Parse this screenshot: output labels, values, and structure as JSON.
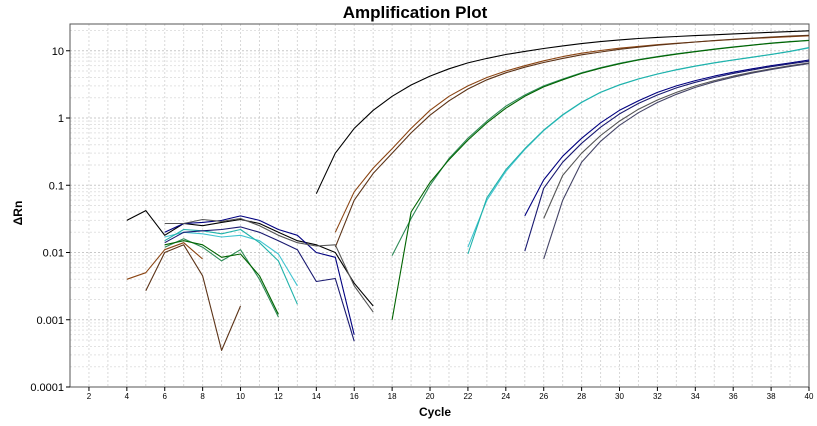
{
  "chart_data": {
    "type": "line",
    "title": "Amplification Plot",
    "xlabel": "Cycle",
    "ylabel": "ΔRn",
    "xlim": [
      1,
      40
    ],
    "ylim": [
      0.0001,
      25
    ],
    "yscale": "log",
    "grid": true,
    "x_ticks": [
      2,
      4,
      6,
      8,
      10,
      12,
      14,
      16,
      18,
      20,
      22,
      24,
      26,
      28,
      30,
      32,
      34,
      36,
      38,
      40
    ],
    "y_ticks": [
      {
        "value": 0.0001,
        "label": "0.0001"
      },
      {
        "value": 0.001,
        "label": "0.001"
      },
      {
        "value": 0.01,
        "label": "0.01"
      },
      {
        "value": 0.1,
        "label": "0.1"
      },
      {
        "value": 1,
        "label": "1"
      },
      {
        "value": 10,
        "label": "10"
      }
    ],
    "series": [
      {
        "color": "#000000",
        "x": [
          14,
          15,
          16,
          17,
          18,
          19,
          20,
          21,
          22,
          23,
          24,
          25,
          26,
          27,
          28,
          29,
          30,
          31,
          32,
          33,
          34,
          35,
          36,
          37,
          38,
          39,
          40
        ],
        "y": [
          0.075,
          0.3,
          0.7,
          1.3,
          2.1,
          3.1,
          4.2,
          5.4,
          6.6,
          7.7,
          8.8,
          9.8,
          10.8,
          11.8,
          12.8,
          13.7,
          14.5,
          15.2,
          15.8,
          16.3,
          16.8,
          17.3,
          17.8,
          18.3,
          18.8,
          19.3,
          19.8
        ]
      },
      {
        "color": "#000000",
        "x": [
          4,
          5,
          6,
          7,
          8,
          9,
          10,
          11,
          12,
          13,
          14,
          15,
          16,
          17
        ],
        "y": [
          0.03,
          0.042,
          0.018,
          0.027,
          0.025,
          0.028,
          0.031,
          0.027,
          0.02,
          0.015,
          0.013,
          0.01,
          0.0035,
          0.0016
        ]
      },
      {
        "color": "#8b4513",
        "x": [
          15,
          16,
          17,
          18,
          19,
          20,
          21,
          22,
          23,
          24,
          25,
          26,
          27,
          28,
          29,
          30,
          31,
          32,
          33,
          34,
          35,
          36,
          37,
          38,
          39,
          40
        ],
        "y": [
          0.02,
          0.08,
          0.18,
          0.35,
          0.7,
          1.3,
          2.1,
          3.0,
          4.0,
          5.0,
          6.0,
          7.1,
          8.2,
          9.2,
          10.1,
          10.9,
          11.6,
          12.3,
          12.9,
          13.5,
          14.1,
          14.7,
          15.2,
          15.7,
          16.2,
          16.7
        ]
      },
      {
        "color": "#5c3317",
        "x": [
          15,
          16,
          17,
          18,
          19,
          20,
          21,
          22,
          23,
          24,
          25,
          26,
          27,
          28,
          29,
          30,
          31,
          32,
          33,
          34,
          35,
          36,
          37,
          38,
          39,
          40
        ],
        "y": [
          0.012,
          0.06,
          0.15,
          0.3,
          0.6,
          1.1,
          1.8,
          2.7,
          3.7,
          4.7,
          5.7,
          6.7,
          7.7,
          8.7,
          9.6,
          10.5,
          11.3,
          12.1,
          12.8,
          13.5,
          14.2,
          14.8,
          15.4,
          16.0,
          16.5,
          17.0
        ]
      },
      {
        "color": "#8b4513",
        "x": [
          4,
          5,
          6,
          7,
          8
        ],
        "y": [
          0.004,
          0.005,
          0.011,
          0.014,
          0.008
        ]
      },
      {
        "color": "#5c3317",
        "x": [
          5,
          6,
          7,
          8,
          9,
          10
        ],
        "y": [
          0.0027,
          0.01,
          0.013,
          0.0045,
          0.00035,
          0.0016
        ]
      },
      {
        "color": "#2e8b57",
        "x": [
          18,
          19,
          20,
          21,
          22,
          23,
          24,
          25,
          26,
          27,
          28,
          29,
          30,
          31,
          32,
          33,
          34,
          35,
          36,
          37,
          38,
          39,
          40
        ],
        "y": [
          0.009,
          0.032,
          0.1,
          0.25,
          0.5,
          0.9,
          1.5,
          2.2,
          3.0,
          3.8,
          4.7,
          5.6,
          6.5,
          7.4,
          8.2,
          9.0,
          9.8,
          10.6,
          11.4,
          12.2,
          13.0,
          13.7,
          14.3
        ]
      },
      {
        "color": "#006400",
        "x": [
          18,
          19,
          20,
          21,
          22,
          23,
          24,
          25,
          26,
          27,
          28,
          29,
          30,
          31,
          32,
          33,
          34,
          35,
          36,
          37,
          38,
          39,
          40
        ],
        "y": [
          0.001,
          0.04,
          0.11,
          0.24,
          0.47,
          0.85,
          1.4,
          2.1,
          2.9,
          3.7,
          4.6,
          5.5,
          6.4,
          7.3,
          8.1,
          8.9,
          9.7,
          10.5,
          11.3,
          12.1,
          12.9,
          13.6,
          14.2
        ]
      },
      {
        "color": "#2e8b57",
        "x": [
          6,
          7,
          8,
          9,
          10,
          11,
          12
        ],
        "y": [
          0.012,
          0.016,
          0.012,
          0.0075,
          0.011,
          0.004,
          0.0011
        ]
      },
      {
        "color": "#006400",
        "x": [
          6,
          7,
          8,
          9,
          10,
          11,
          12
        ],
        "y": [
          0.013,
          0.015,
          0.013,
          0.0085,
          0.0095,
          0.0045,
          0.0012
        ]
      },
      {
        "color": "#40c4d0",
        "x": [
          22,
          23,
          24,
          25,
          26,
          27,
          28,
          29,
          30,
          31,
          32,
          33,
          34,
          35,
          36,
          37,
          38,
          39,
          40
        ],
        "y": [
          0.012,
          0.06,
          0.16,
          0.34,
          0.65,
          1.1,
          1.7,
          2.4,
          3.1,
          3.8,
          4.5,
          5.2,
          5.9,
          6.6,
          7.3,
          8.0,
          8.8,
          9.8,
          11.0
        ]
      },
      {
        "color": "#20b2aa",
        "x": [
          22,
          23,
          24,
          25,
          26,
          27,
          28,
          29,
          30,
          31,
          32,
          33,
          34,
          35,
          36,
          37,
          38,
          39,
          40
        ],
        "y": [
          0.0095,
          0.065,
          0.17,
          0.35,
          0.66,
          1.12,
          1.72,
          2.42,
          3.12,
          3.82,
          4.52,
          5.22,
          5.92,
          6.62,
          7.32,
          8.02,
          8.82,
          9.82,
          11.2
        ]
      },
      {
        "color": "#40c4d0",
        "x": [
          6,
          7,
          8,
          9,
          10,
          11,
          12,
          13
        ],
        "y": [
          0.017,
          0.02,
          0.019,
          0.017,
          0.018,
          0.015,
          0.0095,
          0.0032
        ]
      },
      {
        "color": "#20b2aa",
        "x": [
          6,
          7,
          8,
          9,
          10,
          11,
          12,
          13
        ],
        "y": [
          0.015,
          0.022,
          0.021,
          0.019,
          0.022,
          0.014,
          0.0075,
          0.0017
        ]
      },
      {
        "color": "#000080",
        "x": [
          25,
          26,
          27,
          28,
          29,
          30,
          31,
          32,
          33,
          34,
          35,
          36,
          37,
          38,
          39,
          40
        ],
        "y": [
          0.035,
          0.12,
          0.27,
          0.5,
          0.85,
          1.3,
          1.8,
          2.4,
          3.0,
          3.6,
          4.2,
          4.8,
          5.4,
          6.0,
          6.6,
          7.3
        ]
      },
      {
        "color": "#191970",
        "x": [
          25,
          26,
          27,
          28,
          29,
          30,
          31,
          32,
          33,
          34,
          35,
          36,
          37,
          38,
          39,
          40
        ],
        "y": [
          0.0105,
          0.09,
          0.22,
          0.42,
          0.73,
          1.15,
          1.65,
          2.2,
          2.8,
          3.4,
          4.0,
          4.6,
          5.2,
          5.8,
          6.4,
          7.0
        ]
      },
      {
        "color": "#000080",
        "x": [
          6,
          7,
          8,
          9,
          10,
          11,
          12,
          13,
          14,
          15,
          16
        ],
        "y": [
          0.02,
          0.027,
          0.028,
          0.03,
          0.035,
          0.03,
          0.022,
          0.018,
          0.01,
          0.0085,
          0.0006
        ]
      },
      {
        "color": "#191970",
        "x": [
          6,
          7,
          8,
          9,
          10,
          11,
          12,
          13,
          14,
          15,
          16
        ],
        "y": [
          0.014,
          0.02,
          0.021,
          0.022,
          0.024,
          0.02,
          0.015,
          0.011,
          0.0037,
          0.0041,
          0.00048
        ]
      },
      {
        "color": "#555555",
        "x": [
          26,
          27,
          28,
          29,
          30,
          31,
          32,
          33,
          34,
          35,
          36,
          37,
          38,
          39,
          40
        ],
        "y": [
          0.032,
          0.14,
          0.3,
          0.55,
          0.9,
          1.35,
          1.85,
          2.4,
          3.0,
          3.6,
          4.2,
          4.8,
          5.4,
          6.0,
          6.6
        ]
      },
      {
        "color": "#444466",
        "x": [
          26,
          27,
          28,
          29,
          30,
          31,
          32,
          33,
          34,
          35,
          36,
          37,
          38,
          39,
          40
        ],
        "y": [
          0.008,
          0.06,
          0.22,
          0.45,
          0.78,
          1.2,
          1.7,
          2.25,
          2.85,
          3.45,
          4.05,
          4.65,
          5.25,
          5.85,
          6.45
        ]
      },
      {
        "color": "#555555",
        "x": [
          6,
          7,
          8,
          9,
          10,
          11,
          12,
          13,
          14,
          15,
          16,
          17
        ],
        "y": [
          0.027,
          0.027,
          0.031,
          0.029,
          0.032,
          0.025,
          0.018,
          0.014,
          0.0125,
          0.013,
          0.0032,
          0.0013
        ]
      }
    ]
  }
}
